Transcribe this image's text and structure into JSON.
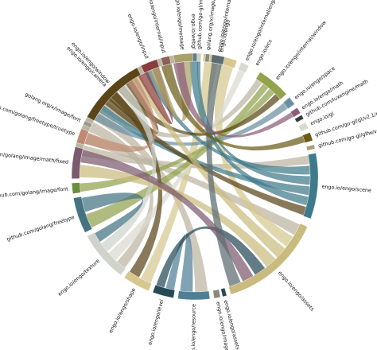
{
  "diagram": {
    "type": "chord",
    "groups": [
      {
        "id": "window",
        "label": "engo.io/engo/window",
        "color": "#bcb4a2",
        "start": 280,
        "end": 355
      },
      {
        "id": "webgl",
        "label": "engo.io/webgl",
        "color": "#5a7f87",
        "start": 357,
        "end": 362
      },
      {
        "id": "engo",
        "label": "engo.io/engo",
        "color": "#d6c78f",
        "start": 364,
        "end": 380
      },
      {
        "id": "internal_engo",
        "label": "engo.io/engo/internal/engo",
        "color": "#d9d9cf",
        "start": 382,
        "end": 386
      },
      {
        "id": "ecs",
        "label": "engo.io/ecs",
        "color": "#ffffff",
        "start": 388,
        "end": 390
      },
      {
        "id": "internal_window",
        "label": "engo.io/engo/internal/window",
        "color": "#92a24d",
        "start": 392,
        "end": 408
      },
      {
        "id": "space",
        "label": "engo.io/engo/space",
        "color": "#6a8fa0",
        "start": 410,
        "end": 414
      },
      {
        "id": "math",
        "label": "engo.io/engo/math",
        "color": "#8c5d78",
        "start": 416,
        "end": 419
      },
      {
        "id": "luxengine_math",
        "label": "github.com/luxengine/math",
        "color": "#3a3a3a",
        "start": 420,
        "end": 422
      },
      {
        "id": "gl",
        "label": "engo.io/gl",
        "color": "#d8dbc9",
        "start": 424,
        "end": 427
      },
      {
        "id": "go_gl_v21",
        "label": "github.com/go-gl/gl/v2.1/gl",
        "color": "#6b5b17",
        "start": 429,
        "end": 433
      },
      {
        "id": "glfw",
        "label": "github.com/go-gl/glfw/v3.1/glfw",
        "color": "#a89e76",
        "start": 435,
        "end": 437
      },
      {
        "id": "scene",
        "label": "engo.io/engo/scene",
        "color": "#3e7a8b",
        "start": 439,
        "end": 470
      },
      {
        "id": "assets",
        "label": "engo.io/engo/assets",
        "color": "#c9bb7d",
        "start": 474,
        "end": 523
      },
      {
        "id": "assets_audio",
        "label": "engo.io/engo/assets/audio",
        "color": "#2b4a55",
        "start": 525,
        "end": 527
      },
      {
        "id": "image",
        "label": "engo.io/engo/image",
        "color": "#8b8880",
        "start": 528,
        "end": 531
      },
      {
        "id": "resource",
        "label": "engo.io/engo/resource",
        "color": "#4f7e95",
        "start": 533,
        "end": 548
      },
      {
        "id": "level",
        "label": "engo.io/engo/level",
        "color": "#244a55",
        "start": 550,
        "end": 560
      },
      {
        "id": "engo_shape",
        "label": "engo.io/engo/shape",
        "color": "#d6c78f",
        "start": 562,
        "end": 575
      },
      {
        "id": "texture",
        "label": "engo.io/engo/texture",
        "color": "#cfd3cc",
        "start": 577,
        "end": 601
      },
      {
        "id": "freetype",
        "label": "github.com/golang/freetype",
        "color": "#447382",
        "start": 603,
        "end": 620
      },
      {
        "id": "image_font",
        "label": "github.com/golang/image/font",
        "color": "#6a8f3c",
        "start": 622,
        "end": 627
      },
      {
        "id": "image_math_fixed",
        "label": "github.com/golang/image/math/fixed",
        "color": "#7b5a6e",
        "start": 629,
        "end": 644
      },
      {
        "id": "freetype_truetype",
        "label": "github.com/golang/freetype/truetype",
        "color": "#c08a72",
        "start": 646,
        "end": 653
      },
      {
        "id": "x_image_font",
        "label": "golang.org/x/image/font",
        "color": "#9a9a8a",
        "start": 655,
        "end": 657
      },
      {
        "id": "camera",
        "label": "engo.io/engo/camera",
        "color": "#5a4518",
        "start": 659,
        "end": 692
      },
      {
        "id": "input",
        "label": "engo.io/engo/input",
        "color": "#8a3c3c",
        "start": 694,
        "end": 702
      },
      {
        "id": "internal_input",
        "label": "engo.io/engo/internal/input",
        "color": "#8b5e58",
        "start": 704,
        "end": 708
      },
      {
        "id": "message",
        "label": "engo.io/engo/message",
        "color": "#a9a16a",
        "start": 710,
        "end": 719
      },
      {
        "id": "mgl32",
        "label": "github.com/go-gl/mathgl/mgl32",
        "color": "#cfcfbf",
        "start": 721,
        "end": 723
      },
      {
        "id": "x_math_f32",
        "label": "golang.org/x/image/math/f32",
        "color": "#8c8c7e",
        "start": 725,
        "end": 727
      },
      {
        "id": "internal_camera",
        "label": "engo.io/engo/internal/camera",
        "color": "#5b6b70",
        "start": 728,
        "end": 734
      }
    ],
    "chords": [
      {
        "source": "window",
        "target": "scene",
        "color": "#bcb4a2"
      },
      {
        "source": "window",
        "target": "assets",
        "color": "#bcb4a2"
      },
      {
        "source": "window",
        "target": "texture",
        "color": "#bcb4a2"
      },
      {
        "source": "window",
        "target": "resource",
        "color": "#bcb4a2"
      },
      {
        "source": "window",
        "target": "internal_window",
        "color": "#bcb4a2"
      },
      {
        "source": "engo",
        "target": "engo_shape",
        "color": "#d6c78f"
      },
      {
        "source": "engo",
        "target": "assets",
        "color": "#d6c78f"
      },
      {
        "source": "internal_engo",
        "target": "texture",
        "color": "#d9d9cf"
      },
      {
        "source": "internal_window",
        "target": "freetype",
        "color": "#92a24d"
      },
      {
        "source": "internal_window",
        "target": "image_font",
        "color": "#92a24d"
      },
      {
        "source": "space",
        "target": "camera",
        "color": "#6a8fa0"
      },
      {
        "source": "scene",
        "target": "input",
        "color": "#3e7a8b"
      },
      {
        "source": "scene",
        "target": "mgl32",
        "color": "#3e7a8b"
      },
      {
        "source": "scene",
        "target": "camera",
        "color": "#3e7a8b"
      },
      {
        "source": "scene",
        "target": "webgl",
        "color": "#3e7a8b"
      },
      {
        "source": "camera",
        "target": "scene",
        "color": "#5a4518"
      },
      {
        "source": "camera",
        "target": "engo_shape",
        "color": "#5a4518"
      },
      {
        "source": "camera",
        "target": "internal_window",
        "color": "#5a4518"
      },
      {
        "source": "camera",
        "target": "window",
        "color": "#5a4518"
      },
      {
        "source": "assets",
        "target": "camera",
        "color": "#c9bb7d"
      },
      {
        "source": "assets",
        "target": "image_math_fixed",
        "color": "#c9bb7d"
      },
      {
        "source": "resource",
        "target": "level",
        "color": "#4f7e95"
      },
      {
        "source": "level",
        "target": "assets",
        "color": "#244a55"
      },
      {
        "source": "texture",
        "target": "window",
        "color": "#cfd3cc"
      },
      {
        "source": "freetype",
        "target": "texture",
        "color": "#447382"
      },
      {
        "source": "image_math_fixed",
        "target": "assets",
        "color": "#7b5a6e"
      },
      {
        "source": "freetype_truetype",
        "target": "window",
        "color": "#c08a72"
      },
      {
        "source": "input",
        "target": "window",
        "color": "#8a3c3c"
      },
      {
        "source": "message",
        "target": "window",
        "color": "#a9a16a"
      },
      {
        "source": "internal_camera",
        "target": "assets",
        "color": "#5b6b70"
      },
      {
        "source": "go_gl_v21",
        "target": "window",
        "color": "#6b5b17"
      },
      {
        "source": "math",
        "target": "window",
        "color": "#8c5d78"
      }
    ]
  }
}
